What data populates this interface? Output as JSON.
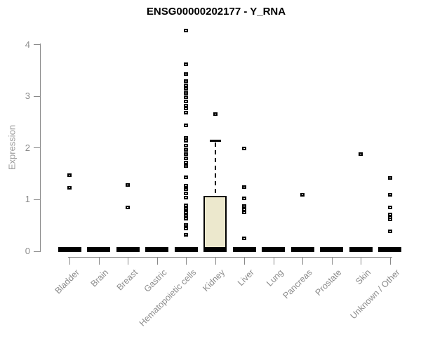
{
  "colors": {
    "background": "#ffffff",
    "title_text": "#000000",
    "axis": "#898989",
    "tick_label": "#8c8c8c",
    "y_axis_label": "#9a9a9a",
    "marker": "#000000",
    "box_fill": "#ece8cd",
    "box_border": "#000000"
  },
  "chart_data": {
    "type": "boxplot",
    "title": "ENSG00000202177 - Y_RNA",
    "ylabel": "Expression",
    "xlabel": "",
    "ylim": [
      0,
      4.3
    ],
    "yticks": [
      0,
      1,
      2,
      3,
      4
    ],
    "grid": false,
    "legend": false,
    "marker_shape": "open-square",
    "baseline_value": 0,
    "categories": [
      "Bladder",
      "Brain",
      "Breast",
      "Gastric",
      "Hematopoietic cells",
      "Kidney",
      "Liver",
      "Lung",
      "Pancreas",
      "Prostate",
      "Skin",
      "Unknown / Other"
    ],
    "series": [
      {
        "category": "Bladder",
        "median": 0,
        "points": [
          1.48,
          1.23
        ]
      },
      {
        "category": "Brain",
        "median": 0,
        "points": []
      },
      {
        "category": "Breast",
        "median": 0,
        "points": [
          1.29,
          0.85
        ]
      },
      {
        "category": "Gastric",
        "median": 0,
        "points": []
      },
      {
        "category": "Hematopoietic cells",
        "median": 0,
        "points": [
          4.27,
          3.62,
          3.43,
          3.3,
          3.22,
          3.14,
          3.06,
          2.98,
          2.9,
          2.82,
          2.76,
          2.68,
          2.44,
          2.2,
          2.14,
          2.04,
          1.96,
          1.88,
          1.8,
          1.72,
          1.65,
          1.44,
          1.27,
          1.2,
          1.12,
          1.04,
          0.89,
          0.82,
          0.76,
          0.69,
          0.63,
          0.51,
          0.44,
          0.32
        ]
      },
      {
        "category": "Kidney",
        "median": 0,
        "points": []
      },
      {
        "category": "Liver",
        "median": 0,
        "points": [
          1.99,
          1.24,
          1.02,
          0.88,
          0.81,
          0.75,
          0.25
        ]
      },
      {
        "category": "Lung",
        "median": 0,
        "points": []
      },
      {
        "category": "Pancreas",
        "median": 0,
        "points": [
          1.09
        ]
      },
      {
        "category": "Prostate",
        "median": 0,
        "points": []
      },
      {
        "category": "Skin",
        "median": 0,
        "points": [
          1.88
        ]
      },
      {
        "category": "Unknown / Other",
        "median": 0,
        "points": [
          1.42,
          1.09,
          0.85,
          0.71,
          0.66,
          0.62,
          0.39
        ]
      }
    ],
    "box": {
      "category": "Kidney",
      "q1": 0.05,
      "median": 0,
      "q3": 1.08,
      "whisker_high": 2.14,
      "outliers": [
        2.65
      ]
    }
  }
}
